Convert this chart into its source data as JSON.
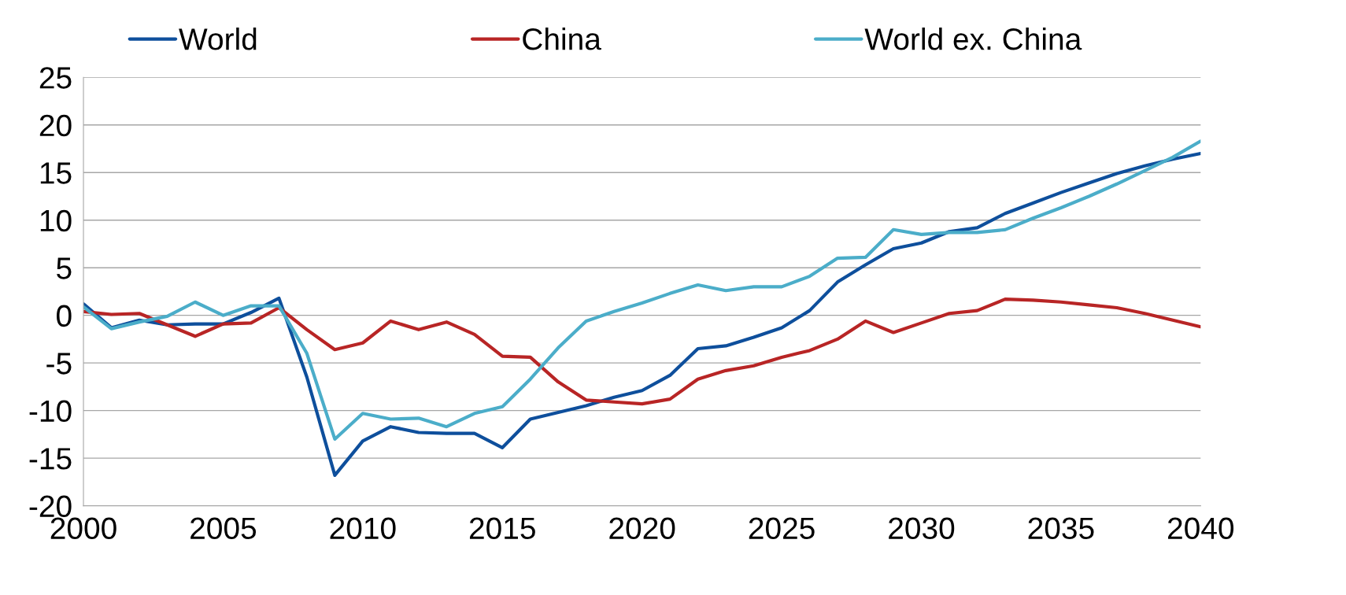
{
  "chart_data": {
    "type": "line",
    "x": [
      2000,
      2001,
      2002,
      2003,
      2004,
      2005,
      2006,
      2007,
      2008,
      2009,
      2010,
      2011,
      2012,
      2013,
      2014,
      2015,
      2016,
      2017,
      2018,
      2019,
      2020,
      2021,
      2022,
      2023,
      2024,
      2025,
      2026,
      2027,
      2028,
      2029,
      2030,
      2031,
      2032,
      2033,
      2034,
      2035,
      2036,
      2037,
      2038,
      2039,
      2040
    ],
    "series": [
      {
        "name": "World",
        "color": "#0e4f9c",
        "values": [
          1.2,
          -1.3,
          -0.5,
          -1.0,
          -0.9,
          -0.9,
          0.3,
          1.8,
          -6.5,
          -16.8,
          -13.2,
          -11.7,
          -12.3,
          -12.4,
          -12.4,
          -13.9,
          -10.9,
          -10.2,
          -9.5,
          -8.6,
          -7.9,
          -6.3,
          -3.5,
          -3.2,
          -2.3,
          -1.3,
          0.5,
          3.5,
          5.3,
          7.0,
          7.6,
          8.8,
          9.2,
          10.7,
          11.8,
          12.9,
          13.9,
          14.9,
          15.7,
          16.4,
          17.0
        ]
      },
      {
        "name": "China",
        "color": "#b82525",
        "values": [
          0.4,
          0.1,
          0.2,
          -1.0,
          -2.2,
          -0.9,
          -0.8,
          0.8,
          -1.5,
          -3.6,
          -2.9,
          -0.6,
          -1.5,
          -0.7,
          -2.0,
          -4.3,
          -4.4,
          -7.0,
          -8.9,
          -9.1,
          -9.3,
          -8.8,
          -6.7,
          -5.8,
          -5.3,
          -4.4,
          -3.7,
          -2.5,
          -0.6,
          -1.8,
          -0.8,
          0.2,
          0.5,
          1.7,
          1.6,
          1.4,
          1.1,
          0.8,
          0.2,
          -0.5,
          -1.2
        ]
      },
      {
        "name": "World ex. China",
        "color": "#4badc9",
        "values": [
          0.9,
          -1.4,
          -0.7,
          -0.1,
          1.4,
          0.0,
          1.0,
          1.0,
          -4.0,
          -13.0,
          -10.3,
          -10.9,
          -10.8,
          -11.7,
          -10.3,
          -9.6,
          -6.7,
          -3.4,
          -0.6,
          0.4,
          1.3,
          2.3,
          3.2,
          2.6,
          3.0,
          3.0,
          4.1,
          6.0,
          6.1,
          9.0,
          8.5,
          8.7,
          8.7,
          9.0,
          10.2,
          11.3,
          12.5,
          13.8,
          15.2,
          16.6,
          18.3
        ]
      }
    ],
    "xlim": [
      2000,
      2040
    ],
    "xticks": [
      2000,
      2005,
      2010,
      2015,
      2020,
      2025,
      2030,
      2035,
      2040
    ],
    "ylim": [
      -20,
      25
    ],
    "yticks": [
      -20,
      -15,
      -10,
      -5,
      0,
      5,
      10,
      15,
      20,
      25
    ],
    "grid": "y",
    "legend": "top",
    "marker": "none",
    "line_style": "solid"
  }
}
